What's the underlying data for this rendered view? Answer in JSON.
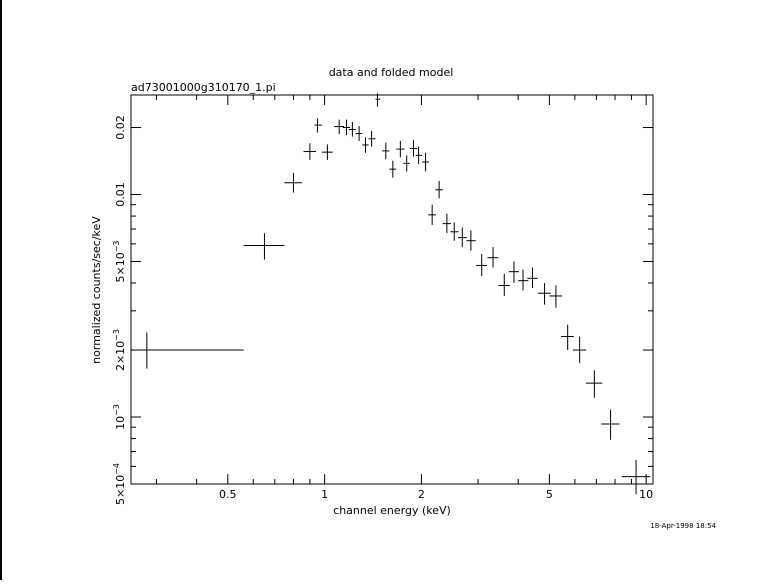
{
  "window": {
    "timestamp": "18-Apr-1998 18:54"
  },
  "chart_data": {
    "type": "scatter",
    "title": "data and folded model",
    "subtitle": "ad73001000g310170_1.pi",
    "xlabel": "channel energy (keV)",
    "ylabel": "normalized counts/sec/keV",
    "xscale": "log",
    "yscale": "log",
    "xlim": [
      0.25,
      10.5
    ],
    "ylim": [
      0.0005,
      0.028
    ],
    "grid": false,
    "legend": "none",
    "x_ticks": [
      {
        "value": 0.5,
        "label": "0.5"
      },
      {
        "value": 1,
        "label": "1"
      },
      {
        "value": 2,
        "label": "2"
      },
      {
        "value": 5,
        "label": "5"
      },
      {
        "value": 10,
        "label": "10"
      }
    ],
    "y_ticks": [
      {
        "value": 0.0005,
        "mant": "5×10",
        "exp": "−4"
      },
      {
        "value": 0.001,
        "mant": "10",
        "exp": "−3"
      },
      {
        "value": 0.002,
        "mant": "2×10",
        "exp": "−3"
      },
      {
        "value": 0.005,
        "mant": "5×10",
        "exp": "−3"
      },
      {
        "value": 0.01,
        "mant": "0.01",
        "exp": ""
      },
      {
        "value": 0.02,
        "mant": "0.02",
        "exp": ""
      }
    ],
    "series": [
      {
        "points": [
          {
            "x": 0.28,
            "xlo": 0.25,
            "xhi": 0.56,
            "y": 0.002,
            "ylo": 0.00165,
            "yhi": 0.0024
          },
          {
            "x": 0.65,
            "xlo": 0.56,
            "xhi": 0.75,
            "y": 0.0059,
            "ylo": 0.0051,
            "yhi": 0.0067
          },
          {
            "x": 0.8,
            "xlo": 0.75,
            "xhi": 0.85,
            "y": 0.0113,
            "ylo": 0.0102,
            "yhi": 0.0125
          },
          {
            "x": 0.9,
            "xlo": 0.86,
            "xhi": 0.94,
            "y": 0.0156,
            "ylo": 0.0143,
            "yhi": 0.017
          },
          {
            "x": 0.95,
            "xlo": 0.93,
            "xhi": 0.98,
            "y": 0.0205,
            "ylo": 0.019,
            "yhi": 0.022
          },
          {
            "x": 1.02,
            "xlo": 0.98,
            "xhi": 1.06,
            "y": 0.0155,
            "ylo": 0.0143,
            "yhi": 0.0168
          },
          {
            "x": 1.11,
            "xlo": 1.07,
            "xhi": 1.15,
            "y": 0.0202,
            "ylo": 0.0187,
            "yhi": 0.0217
          },
          {
            "x": 1.17,
            "xlo": 1.14,
            "xhi": 1.2,
            "y": 0.02,
            "ylo": 0.0185,
            "yhi": 0.0217
          },
          {
            "x": 1.22,
            "xlo": 1.19,
            "xhi": 1.25,
            "y": 0.0196,
            "ylo": 0.0182,
            "yhi": 0.0212
          },
          {
            "x": 1.28,
            "xlo": 1.25,
            "xhi": 1.31,
            "y": 0.0188,
            "ylo": 0.0174,
            "yhi": 0.0203
          },
          {
            "x": 1.34,
            "xlo": 1.31,
            "xhi": 1.37,
            "y": 0.0167,
            "ylo": 0.0154,
            "yhi": 0.0181
          },
          {
            "x": 1.4,
            "xlo": 1.37,
            "xhi": 1.44,
            "y": 0.0178,
            "ylo": 0.0164,
            "yhi": 0.0193
          },
          {
            "x": 1.46,
            "xlo": 1.44,
            "xhi": 1.49,
            "y": 0.0268,
            "ylo": 0.0248,
            "yhi": 0.0285
          },
          {
            "x": 1.55,
            "xlo": 1.51,
            "xhi": 1.59,
            "y": 0.0157,
            "ylo": 0.0144,
            "yhi": 0.0171
          },
          {
            "x": 1.63,
            "xlo": 1.59,
            "xhi": 1.67,
            "y": 0.013,
            "ylo": 0.0119,
            "yhi": 0.0142
          },
          {
            "x": 1.72,
            "xlo": 1.67,
            "xhi": 1.77,
            "y": 0.016,
            "ylo": 0.0147,
            "yhi": 0.0174
          },
          {
            "x": 1.8,
            "xlo": 1.76,
            "xhi": 1.84,
            "y": 0.0138,
            "ylo": 0.0127,
            "yhi": 0.015
          },
          {
            "x": 1.89,
            "xlo": 1.84,
            "xhi": 1.94,
            "y": 0.0161,
            "ylo": 0.0148,
            "yhi": 0.0176
          },
          {
            "x": 1.96,
            "xlo": 1.92,
            "xhi": 2.01,
            "y": 0.015,
            "ylo": 0.0137,
            "yhi": 0.0164
          },
          {
            "x": 2.06,
            "xlo": 2.01,
            "xhi": 2.11,
            "y": 0.014,
            "ylo": 0.0127,
            "yhi": 0.0154
          },
          {
            "x": 2.16,
            "xlo": 2.1,
            "xhi": 2.22,
            "y": 0.0081,
            "ylo": 0.0073,
            "yhi": 0.009
          },
          {
            "x": 2.27,
            "xlo": 2.21,
            "xhi": 2.33,
            "y": 0.0105,
            "ylo": 0.0096,
            "yhi": 0.0115
          },
          {
            "x": 2.4,
            "xlo": 2.33,
            "xhi": 2.47,
            "y": 0.0074,
            "ylo": 0.0067,
            "yhi": 0.0082
          },
          {
            "x": 2.53,
            "xlo": 2.46,
            "xhi": 2.61,
            "y": 0.0068,
            "ylo": 0.0062,
            "yhi": 0.0075
          },
          {
            "x": 2.68,
            "xlo": 2.6,
            "xhi": 2.77,
            "y": 0.0064,
            "ylo": 0.0058,
            "yhi": 0.0071
          },
          {
            "x": 2.85,
            "xlo": 2.76,
            "xhi": 2.95,
            "y": 0.0062,
            "ylo": 0.0056,
            "yhi": 0.0069
          },
          {
            "x": 3.08,
            "xlo": 2.96,
            "xhi": 3.2,
            "y": 0.0048,
            "ylo": 0.0043,
            "yhi": 0.0054
          },
          {
            "x": 3.34,
            "xlo": 3.21,
            "xhi": 3.47,
            "y": 0.0052,
            "ylo": 0.0047,
            "yhi": 0.0058
          },
          {
            "x": 3.62,
            "xlo": 3.47,
            "xhi": 3.77,
            "y": 0.0039,
            "ylo": 0.0035,
            "yhi": 0.0044
          },
          {
            "x": 3.88,
            "xlo": 3.74,
            "xhi": 4.02,
            "y": 0.0045,
            "ylo": 0.004,
            "yhi": 0.005
          },
          {
            "x": 4.14,
            "xlo": 4.0,
            "xhi": 4.3,
            "y": 0.0041,
            "ylo": 0.0037,
            "yhi": 0.0046
          },
          {
            "x": 4.43,
            "xlo": 4.27,
            "xhi": 4.6,
            "y": 0.0042,
            "ylo": 0.0038,
            "yhi": 0.0047
          },
          {
            "x": 4.83,
            "xlo": 4.6,
            "xhi": 5.06,
            "y": 0.0036,
            "ylo": 0.0032,
            "yhi": 0.004
          },
          {
            "x": 5.24,
            "xlo": 5.0,
            "xhi": 5.48,
            "y": 0.0035,
            "ylo": 0.0031,
            "yhi": 0.0039
          },
          {
            "x": 5.7,
            "xlo": 5.44,
            "xhi": 5.96,
            "y": 0.0023,
            "ylo": 0.002,
            "yhi": 0.0026
          },
          {
            "x": 6.21,
            "xlo": 5.92,
            "xhi": 6.5,
            "y": 0.002,
            "ylo": 0.00175,
            "yhi": 0.0023
          },
          {
            "x": 6.9,
            "xlo": 6.5,
            "xhi": 7.3,
            "y": 0.00142,
            "ylo": 0.00122,
            "yhi": 0.00162
          },
          {
            "x": 7.75,
            "xlo": 7.25,
            "xhi": 8.25,
            "y": 0.00093,
            "ylo": 0.00079,
            "yhi": 0.00108
          },
          {
            "x": 9.3,
            "xlo": 8.4,
            "xhi": 10.3,
            "y": 0.00054,
            "ylo": 0.00045,
            "yhi": 0.00064
          }
        ]
      }
    ]
  }
}
